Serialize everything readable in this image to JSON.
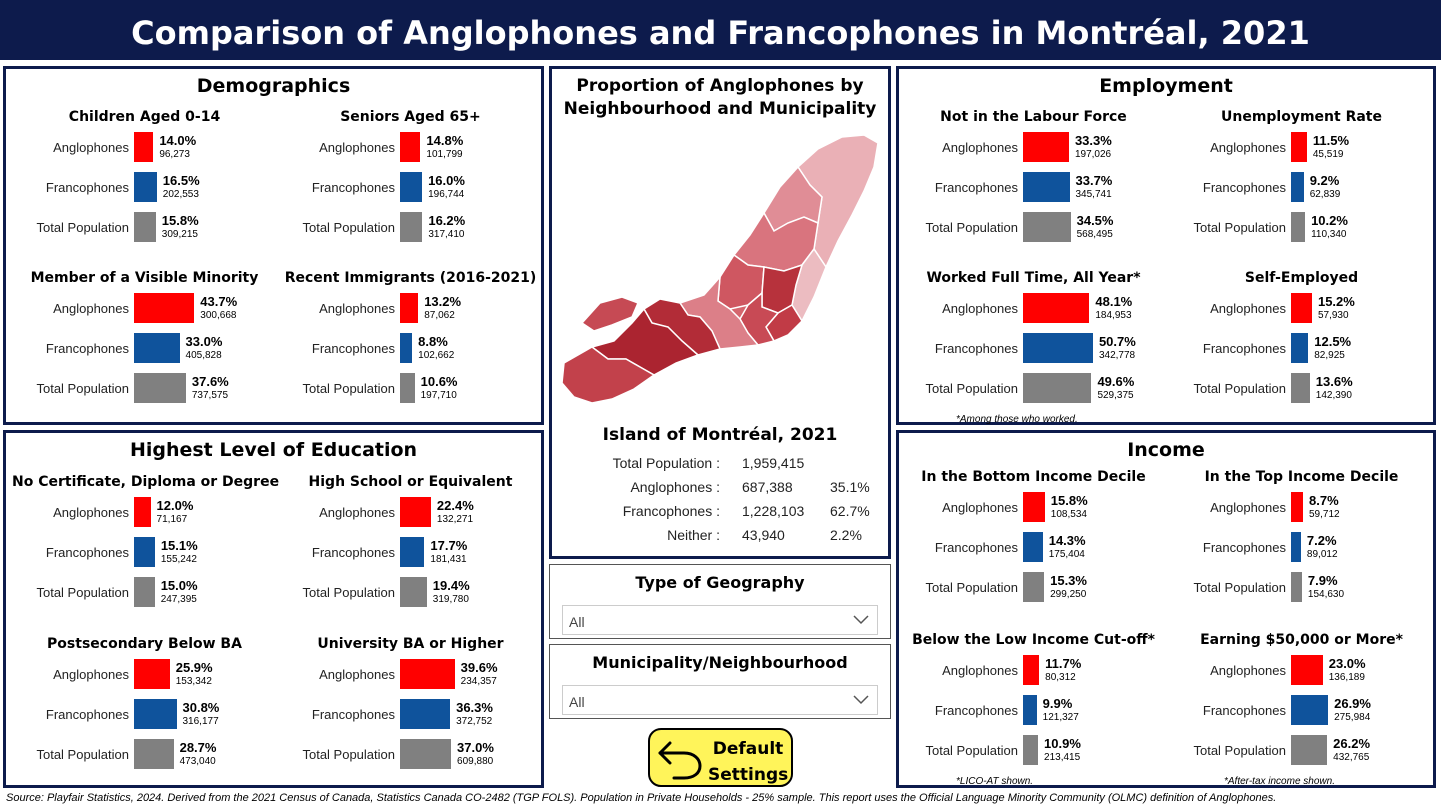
{
  "title": "Comparison of Anglophones and Francophones in Montréal, 2021",
  "colors": {
    "anglophones": "#ff0000",
    "francophones": "#0f539c",
    "total": "#808080",
    "navy": "#0d1b4c",
    "button": "#fff45a"
  },
  "icons": {
    "reset": "undo-arrow-icon",
    "dropdown": "chevron-down-icon"
  },
  "sections": {
    "demographics": {
      "title": "Demographics"
    },
    "education": {
      "title": "Highest Level of Education"
    },
    "employment": {
      "title": "Employment"
    },
    "income": {
      "title": "Income"
    }
  },
  "chart_data": [
    {
      "type": "bar",
      "section": "demographics",
      "title": "Children Aged 0-14",
      "categories": [
        "Anglophones",
        "Francophones",
        "Total Population"
      ],
      "values": [
        14.0,
        16.5,
        15.8
      ],
      "labels": [
        "14.0%",
        "16.5%",
        "15.8%"
      ],
      "counts": [
        "96,273",
        "202,553",
        "309,215"
      ]
    },
    {
      "type": "bar",
      "section": "demographics",
      "title": "Seniors Aged 65+",
      "categories": [
        "Anglophones",
        "Francophones",
        "Total Population"
      ],
      "values": [
        14.8,
        16.0,
        16.2
      ],
      "labels": [
        "14.8%",
        "16.0%",
        "16.2%"
      ],
      "counts": [
        "101,799",
        "196,744",
        "317,410"
      ]
    },
    {
      "type": "bar",
      "section": "demographics",
      "title": "Member of a Visible Minority",
      "categories": [
        "Anglophones",
        "Francophones",
        "Total Population"
      ],
      "values": [
        43.7,
        33.0,
        37.6
      ],
      "labels": [
        "43.7%",
        "33.0%",
        "37.6%"
      ],
      "counts": [
        "300,668",
        "405,828",
        "737,575"
      ]
    },
    {
      "type": "bar",
      "section": "demographics",
      "title": "Recent Immigrants (2016-2021)",
      "categories": [
        "Anglophones",
        "Francophones",
        "Total Population"
      ],
      "values": [
        13.2,
        8.8,
        10.6
      ],
      "labels": [
        "13.2%",
        "8.8%",
        "10.6%"
      ],
      "counts": [
        "87,062",
        "102,662",
        "197,710"
      ]
    },
    {
      "type": "bar",
      "section": "education",
      "title": "No Certificate, Diploma or Degree",
      "categories": [
        "Anglophones",
        "Francophones",
        "Total Population"
      ],
      "values": [
        12.0,
        15.1,
        15.0
      ],
      "labels": [
        "12.0%",
        "15.1%",
        "15.0%"
      ],
      "counts": [
        "71,167",
        "155,242",
        "247,395"
      ]
    },
    {
      "type": "bar",
      "section": "education",
      "title": "High School or Equivalent",
      "categories": [
        "Anglophones",
        "Francophones",
        "Total Population"
      ],
      "values": [
        22.4,
        17.7,
        19.4
      ],
      "labels": [
        "22.4%",
        "17.7%",
        "19.4%"
      ],
      "counts": [
        "132,271",
        "181,431",
        "319,780"
      ]
    },
    {
      "type": "bar",
      "section": "education",
      "title": "Postsecondary Below BA",
      "categories": [
        "Anglophones",
        "Francophones",
        "Total Population"
      ],
      "values": [
        25.9,
        30.8,
        28.7
      ],
      "labels": [
        "25.9%",
        "30.8%",
        "28.7%"
      ],
      "counts": [
        "153,342",
        "316,177",
        "473,040"
      ]
    },
    {
      "type": "bar",
      "section": "education",
      "title": "University BA or Higher",
      "categories": [
        "Anglophones",
        "Francophones",
        "Total Population"
      ],
      "values": [
        39.6,
        36.3,
        37.0
      ],
      "labels": [
        "39.6%",
        "36.3%",
        "37.0%"
      ],
      "counts": [
        "234,357",
        "372,752",
        "609,880"
      ]
    },
    {
      "type": "bar",
      "section": "employment",
      "title": "Not in the Labour Force",
      "categories": [
        "Anglophones",
        "Francophones",
        "Total Population"
      ],
      "values": [
        33.3,
        33.7,
        34.5
      ],
      "labels": [
        "33.3%",
        "33.7%",
        "34.5%"
      ],
      "counts": [
        "197,026",
        "345,741",
        "568,495"
      ]
    },
    {
      "type": "bar",
      "section": "employment",
      "title": "Unemployment Rate",
      "categories": [
        "Anglophones",
        "Francophones",
        "Total Population"
      ],
      "values": [
        11.5,
        9.2,
        10.2
      ],
      "labels": [
        "11.5%",
        "9.2%",
        "10.2%"
      ],
      "counts": [
        "45,519",
        "62,839",
        "110,340"
      ]
    },
    {
      "type": "bar",
      "section": "employment",
      "title": "Worked Full Time, All Year*",
      "categories": [
        "Anglophones",
        "Francophones",
        "Total Population"
      ],
      "values": [
        48.1,
        50.7,
        49.6
      ],
      "labels": [
        "48.1%",
        "50.7%",
        "49.6%"
      ],
      "counts": [
        "184,953",
        "342,778",
        "529,375"
      ],
      "note": "*Among those who worked."
    },
    {
      "type": "bar",
      "section": "employment",
      "title": "Self-Employed",
      "categories": [
        "Anglophones",
        "Francophones",
        "Total Population"
      ],
      "values": [
        15.2,
        12.5,
        13.6
      ],
      "labels": [
        "15.2%",
        "12.5%",
        "13.6%"
      ],
      "counts": [
        "57,930",
        "82,925",
        "142,390"
      ]
    },
    {
      "type": "bar",
      "section": "income",
      "title": "In the Bottom Income Decile",
      "categories": [
        "Anglophones",
        "Francophones",
        "Total Population"
      ],
      "values": [
        15.8,
        14.3,
        15.3
      ],
      "labels": [
        "15.8%",
        "14.3%",
        "15.3%"
      ],
      "counts": [
        "108,534",
        "175,404",
        "299,250"
      ]
    },
    {
      "type": "bar",
      "section": "income",
      "title": "In the Top Income Decile",
      "categories": [
        "Anglophones",
        "Francophones",
        "Total Population"
      ],
      "values": [
        8.7,
        7.2,
        7.9
      ],
      "labels": [
        "8.7%",
        "7.2%",
        "7.9%"
      ],
      "counts": [
        "59,712",
        "89,012",
        "154,630"
      ]
    },
    {
      "type": "bar",
      "section": "income",
      "title": "Below the Low Income Cut-off*",
      "categories": [
        "Anglophones",
        "Francophones",
        "Total Population"
      ],
      "values": [
        11.7,
        9.9,
        10.9
      ],
      "labels": [
        "11.7%",
        "9.9%",
        "10.9%"
      ],
      "counts": [
        "80,312",
        "121,327",
        "213,415"
      ],
      "note": "*LICO-AT shown."
    },
    {
      "type": "bar",
      "section": "income",
      "title": "Earning $50,000 or More*",
      "categories": [
        "Anglophones",
        "Francophones",
        "Total Population"
      ],
      "values": [
        23.0,
        26.9,
        26.2
      ],
      "labels": [
        "23.0%",
        "26.9%",
        "26.2%"
      ],
      "counts": [
        "136,189",
        "275,984",
        "432,765"
      ],
      "note": "*After-tax income shown."
    }
  ],
  "map": {
    "title": "Proportion of Anglophones by Neighbourhood and Municipality",
    "island_title": "Island of Montréal, 2021",
    "stats": [
      {
        "label": "Total Population :",
        "value": "1,959,415",
        "pct": ""
      },
      {
        "label": "Anglophones :",
        "value": "687,388",
        "pct": "35.1%"
      },
      {
        "label": "Francophones :",
        "value": "1,228,103",
        "pct": "62.7%"
      },
      {
        "label": "Neither :",
        "value": "43,940",
        "pct": "2.2%"
      }
    ]
  },
  "filters": {
    "geography": {
      "title": "Type of Geography",
      "value": "All"
    },
    "municipality": {
      "title": "Municipality/Neighbourhood",
      "value": "All"
    }
  },
  "reset_button": {
    "label": "Default\nSettings"
  },
  "source": "Source: Playfair Statistics, 2024. Derived from the 2021 Census of Canada, Statistics Canada CO-2482 (TGP FOLS). Population in Private Households - 25% sample. This report uses the Official Language Minority Community (OLMC) definition of Anglophones."
}
